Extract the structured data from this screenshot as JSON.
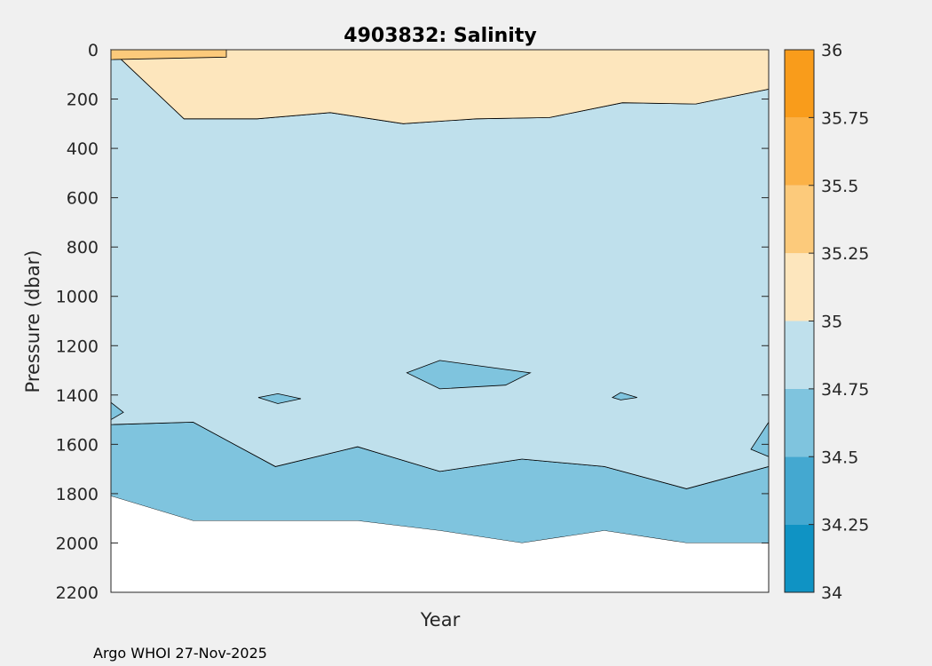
{
  "chart_data": {
    "type": "contour",
    "title": "4903832:  Salinity",
    "xlabel": "Year",
    "ylabel": "Pressure (dbar)",
    "ylim": [
      0,
      2200
    ],
    "y_reversed": true,
    "yticks": [
      0,
      200,
      400,
      600,
      800,
      1000,
      1200,
      1400,
      1600,
      1800,
      2000,
      2200
    ],
    "xticks": [],
    "colorbar": {
      "levels": [
        34,
        34.25,
        34.5,
        34.75,
        35,
        35.25,
        35.5,
        35.75,
        36
      ],
      "tick_labels": [
        "34",
        "34.25",
        "34.5",
        "34.75",
        "35",
        "35.25",
        "35.5",
        "35.75",
        "36"
      ],
      "colors": [
        "#0f93c4",
        "#44a8d0",
        "#7fc4de",
        "#bfe0ec",
        "#fde6bd",
        "#fcca7b",
        "#fbb146",
        "#f99c1b"
      ]
    },
    "profile_index": [
      0,
      1,
      2,
      3,
      4,
      5,
      6,
      7,
      8
    ],
    "max_pressure": [
      1810,
      1910,
      1910,
      1910,
      1950,
      2000,
      1950,
      2000,
      2000
    ],
    "contours": {
      "isohaline_35_0": [
        0,
        280,
        280,
        255,
        300,
        280,
        275,
        215,
        220,
        160
      ],
      "isohaline_34_75": [
        1520,
        1510,
        1690,
        1610,
        1710,
        1660,
        1690,
        1780,
        1690
      ],
      "isohaline_35_25_upper": [
        40,
        30,
        10,
        5,
        5,
        20,
        25,
        25
      ]
    }
  },
  "footer": "Argo WHOI 27-Nov-2025"
}
